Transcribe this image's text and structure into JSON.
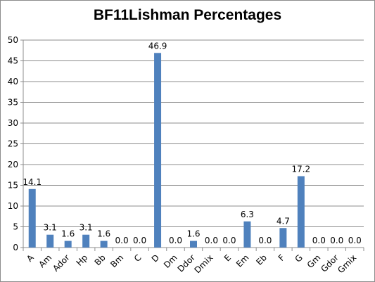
{
  "chart_data": {
    "type": "bar",
    "title": "BF11Lishman Percentages",
    "xlabel": "",
    "ylabel": "",
    "ylim": [
      0,
      50
    ],
    "yticks": [
      0,
      5,
      10,
      15,
      20,
      25,
      30,
      35,
      40,
      45,
      50
    ],
    "grid": true,
    "legend": "none",
    "bar_color": "#4f81bd",
    "categories": [
      "A",
      "Am",
      "Ador",
      "Hp",
      "Bb",
      "Bm",
      "C",
      "D",
      "Dm",
      "Ddor",
      "Dmix",
      "E",
      "Em",
      "Eb",
      "F",
      "G",
      "Gm",
      "Gdor",
      "Gmix"
    ],
    "values": [
      14.1,
      3.1,
      1.6,
      3.1,
      1.6,
      0.0,
      0.0,
      46.9,
      0.0,
      1.6,
      0.0,
      0.0,
      6.3,
      0.0,
      4.7,
      17.2,
      0.0,
      0.0,
      0.0
    ],
    "data_labels": [
      "14.1",
      "3.1",
      "1.6",
      "3.1",
      "1.6",
      "0.0",
      "0.0",
      "46.9",
      "0.0",
      "1.6",
      "0.0",
      "0.0",
      "6.3",
      "0.0",
      "4.7",
      "17.2",
      "0.0",
      "0.0",
      "0.0"
    ]
  }
}
